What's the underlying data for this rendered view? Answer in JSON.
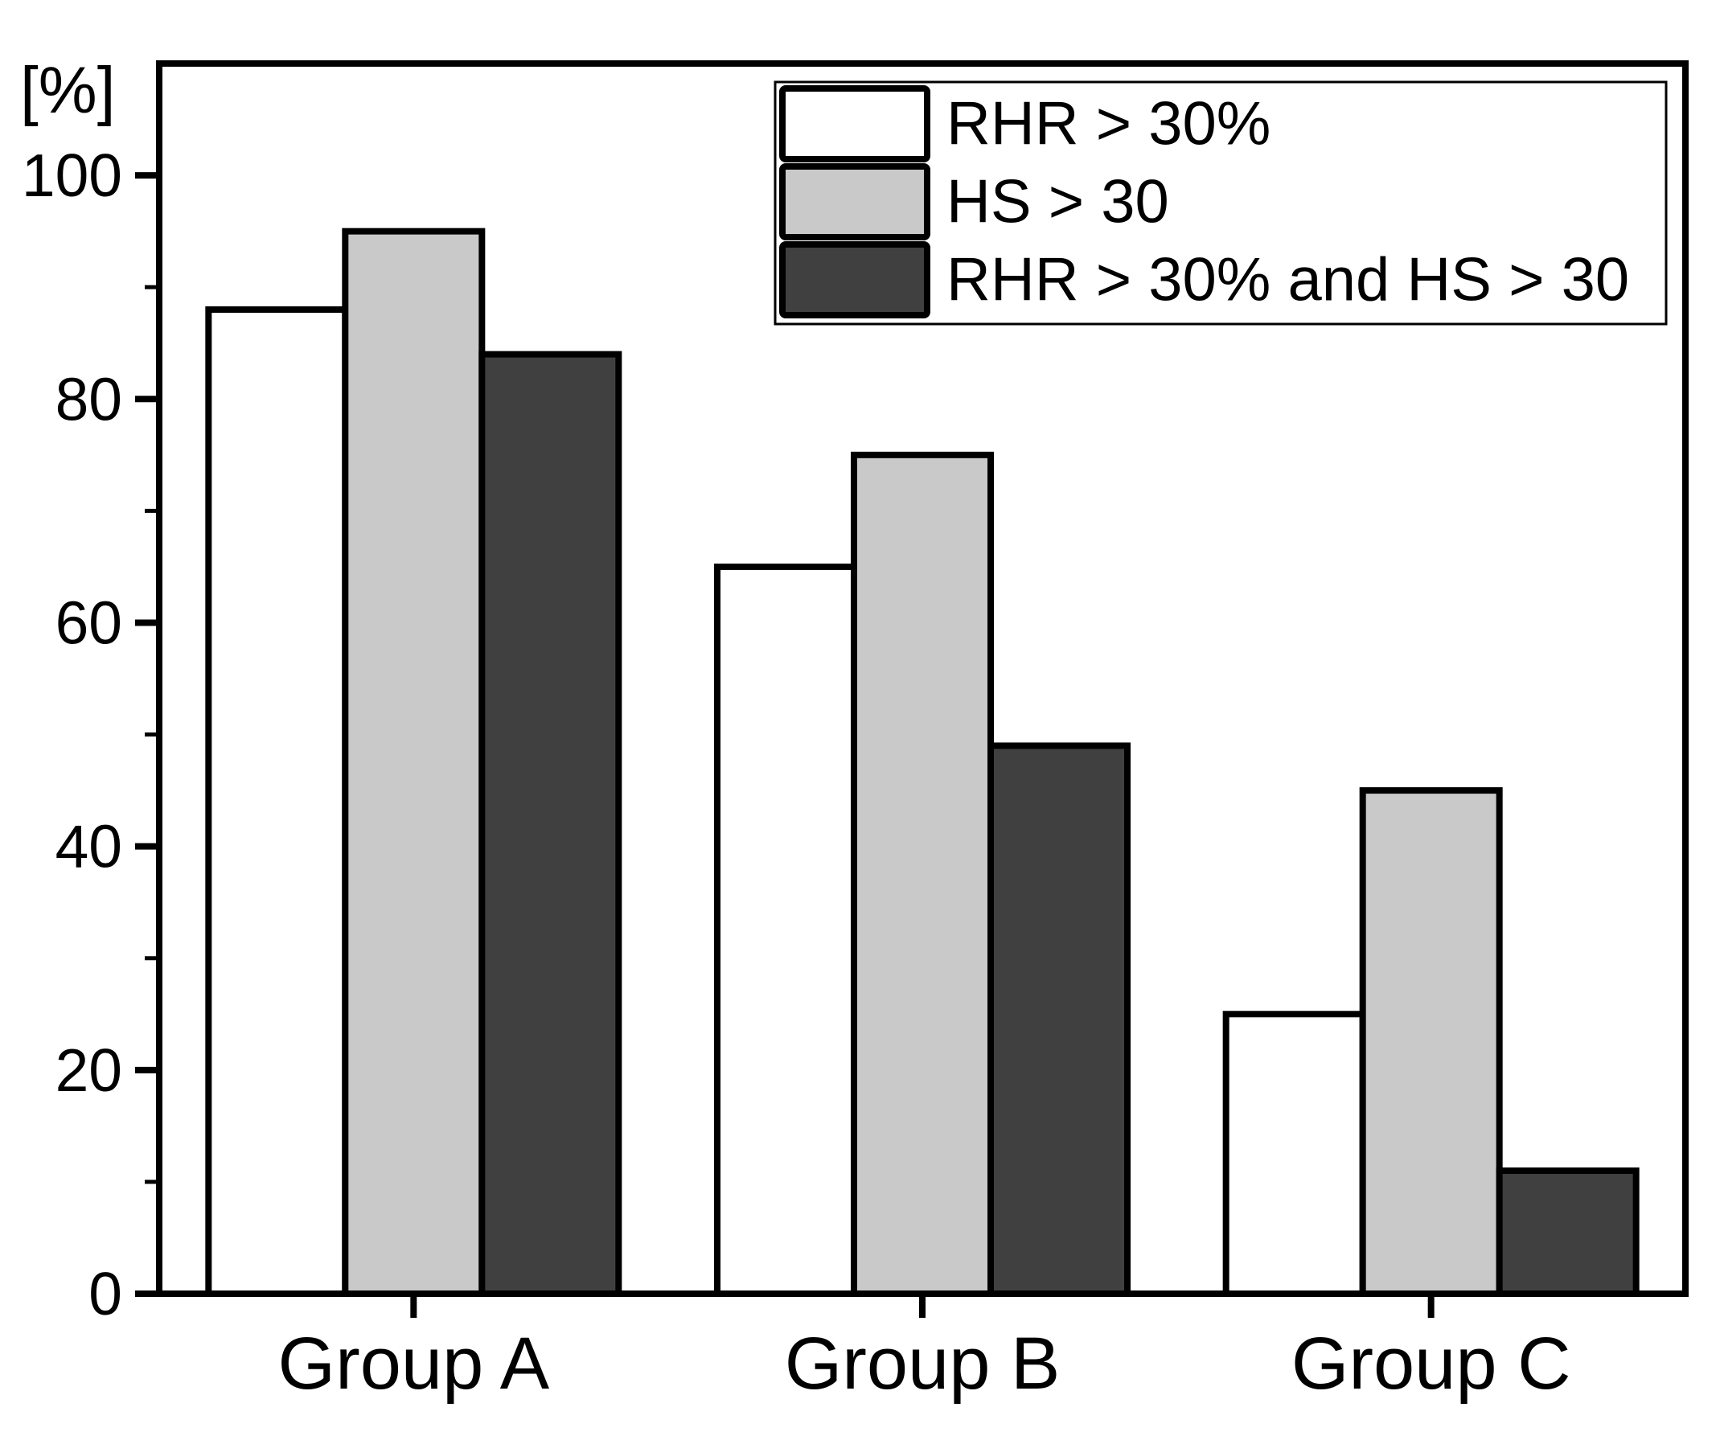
{
  "chart_data": {
    "type": "bar",
    "title": "",
    "ylabel": "[%]",
    "xlabel": "",
    "categories": [
      "Group A",
      "Group B",
      "Group C"
    ],
    "series": [
      {
        "name": "RHR > 30%",
        "color": "#ffffff",
        "values": [
          88,
          65,
          25
        ]
      },
      {
        "name": "HS > 30",
        "color": "#c9c9c9",
        "values": [
          95,
          75,
          45
        ]
      },
      {
        "name": "RHR > 30% and HS > 30",
        "color": "#404040",
        "values": [
          84,
          49,
          11
        ]
      }
    ],
    "ylim": [
      0,
      110
    ],
    "yticks_major": [
      0,
      20,
      40,
      60,
      80,
      100
    ],
    "yticks_minor": [
      10,
      30,
      50,
      70,
      90
    ],
    "grid": false,
    "legend_position": "top-right",
    "bar_outline_color": "#000000",
    "axis_color": "#000000"
  }
}
